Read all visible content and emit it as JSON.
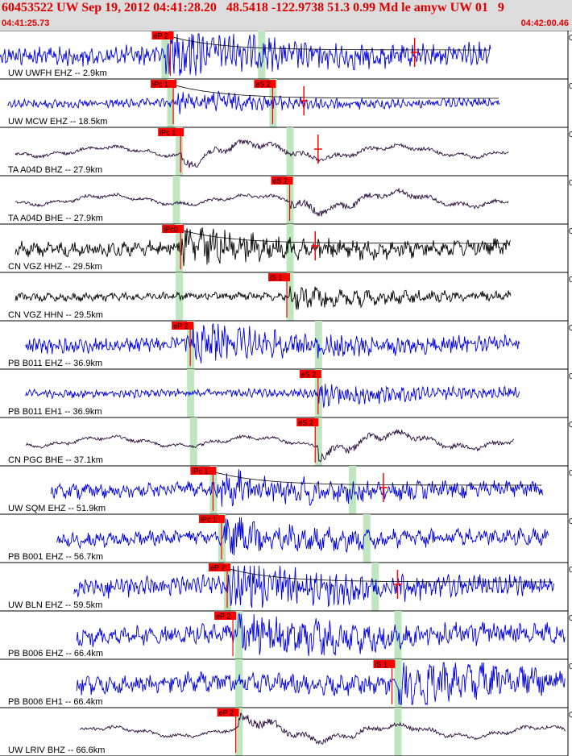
{
  "header": {
    "title": "60453522 UW Sep 19, 2012 04:41:28.20   48.5418 -122.9738 51.3 0.99 Md le amyw UW 01   9",
    "start_time": "04:41:25.73",
    "end_time": "04:42:00.46"
  },
  "colors": {
    "header_bg": "#dcdcdc",
    "header_text": "#e00000",
    "pick_box": "#ff0000",
    "window": "#bfe6bf",
    "blue": "#0000dd",
    "purple": "#2a0a3a",
    "black": "#000000"
  },
  "chart_data": {
    "type": "line",
    "x_range": [
      "04:41:25.73",
      "04:42:00.46"
    ],
    "traces": [
      {
        "label": "UW UWFH EHZ -- 2.9km",
        "color": "blue",
        "amp": "high",
        "freq": "high",
        "start": 0.0,
        "end": 0.864,
        "burst": 0.29,
        "picks": [
          {
            "text": "eP 2",
            "t": 0.3
          }
        ],
        "windows": [
          0.29,
          0.46
        ],
        "coda": true,
        "marker": 0.73,
        "zero": "0"
      },
      {
        "label": "UW MCW EHZ -- 18.5km",
        "color": "blue",
        "amp": "low",
        "freq": "high",
        "start": 0.013,
        "end": 0.88,
        "burst": 0.31,
        "picks": [
          {
            "text": "iPc 1",
            "t": 0.305
          },
          {
            "text": "eS 2",
            "t": 0.48
          }
        ],
        "windows": [
          0.3,
          0.48
        ],
        "coda": true,
        "marker": 0.535,
        "zero": "0"
      },
      {
        "label": "TA A04D BHZ -- 27.9km",
        "color": "purple",
        "amp": "med",
        "freq": "low",
        "start": 0.027,
        "end": 0.895,
        "burst": 0.32,
        "picks": [
          {
            "text": "iPc 1",
            "t": 0.318
          }
        ],
        "windows": [
          0.315,
          0.51
        ],
        "coda": false,
        "marker": 0.56,
        "zero": "0"
      },
      {
        "label": "TA A04D BHE -- 27.9km",
        "color": "purple",
        "amp": "med",
        "freq": "low",
        "start": 0.027,
        "end": 0.895,
        "burst": 0.51,
        "picks": [
          {
            "text": "eS 2",
            "t": 0.51
          }
        ],
        "windows": [
          0.31,
          0.51
        ],
        "coda": false,
        "marker": null,
        "zero": "0"
      },
      {
        "label": "CN VGZ HHZ -- 29.5km",
        "color": "black",
        "amp": "med",
        "freq": "med",
        "start": 0.027,
        "end": 0.9,
        "burst": 0.32,
        "picks": [
          {
            "text": "iPc0",
            "t": 0.318
          }
        ],
        "windows": [
          0.315,
          0.51
        ],
        "coda": true,
        "marker": 0.555,
        "zero": "0"
      },
      {
        "label": "CN VGZ HHN -- 29.5km",
        "color": "black",
        "amp": "low",
        "freq": "med",
        "start": 0.027,
        "end": 0.9,
        "burst": 0.51,
        "picks": [
          {
            "text": "iS 1",
            "t": 0.505
          }
        ],
        "windows": [
          0.315,
          0.51
        ],
        "coda": false,
        "marker": null,
        "zero": "0"
      },
      {
        "label": "PB B011 EHZ -- 36.9km",
        "color": "blue",
        "amp": "med",
        "freq": "high",
        "start": 0.045,
        "end": 0.915,
        "burst": 0.34,
        "picks": [
          {
            "text": "eP 2",
            "t": 0.335
          }
        ],
        "windows": [
          0.335,
          0.56
        ],
        "coda": false,
        "marker": null,
        "zero": "0"
      },
      {
        "label": "PB B011 EH1 -- 36.9km",
        "color": "blue",
        "amp": "low",
        "freq": "high",
        "start": 0.045,
        "end": 0.915,
        "burst": 0.56,
        "picks": [
          {
            "text": "eS 2",
            "t": 0.56
          }
        ],
        "windows": [
          0.335,
          0.56
        ],
        "coda": false,
        "marker": null,
        "zero": "0"
      },
      {
        "label": "CN PGC BHE -- 37.1km",
        "color": "purple",
        "amp": "med",
        "freq": "low",
        "start": 0.045,
        "end": 0.905,
        "burst": 0.56,
        "picks": [
          {
            "text": "eS 2",
            "t": 0.555
          }
        ],
        "windows": [
          0.34,
          0.56
        ],
        "coda": false,
        "marker": null,
        "zero": "0"
      },
      {
        "label": "UW SQM EHZ -- 51.9km",
        "color": "blue",
        "amp": "med",
        "freq": "med",
        "start": 0.09,
        "end": 0.955,
        "burst": 0.38,
        "picks": [
          {
            "text": "iPc 1",
            "t": 0.375
          }
        ],
        "windows": [
          0.375,
          0.62
        ],
        "coda": true,
        "marker": 0.675,
        "zero": "0"
      },
      {
        "label": "PB B001 EHZ -- 56.7km",
        "color": "blue",
        "amp": "med",
        "freq": "med",
        "start": 0.1,
        "end": 0.965,
        "burst": 0.395,
        "picks": [
          {
            "text": "iPc 1",
            "t": 0.39
          }
        ],
        "windows": [
          0.39,
          0.645
        ],
        "coda": false,
        "marker": null,
        "zero": "0"
      },
      {
        "label": "UW BLN EHZ -- 59.5km",
        "color": "blue",
        "amp": "high",
        "freq": "high",
        "start": 0.13,
        "end": 0.975,
        "burst": 0.4,
        "picks": [
          {
            "text": "eP 2",
            "t": 0.4
          }
        ],
        "windows": [
          0.4,
          0.66
        ],
        "coda": true,
        "marker": 0.7,
        "zero": "0"
      },
      {
        "label": "PB B006 EHZ -- 66.4km",
        "color": "blue",
        "amp": "high",
        "freq": "med",
        "start": 0.135,
        "end": 0.995,
        "burst": 0.42,
        "picks": [
          {
            "text": "eP 2",
            "t": 0.41
          }
        ],
        "windows": [
          0.42,
          0.7
        ],
        "coda": false,
        "marker": null,
        "zero": "0"
      },
      {
        "label": "PB B006 EH1 -- 66.4km",
        "color": "blue",
        "amp": "high",
        "freq": "med",
        "start": 0.135,
        "end": 0.995,
        "burst": 0.7,
        "picks": [
          {
            "text": "iS 1",
            "t": 0.69
          }
        ],
        "windows": [
          0.42,
          0.7
        ],
        "coda": false,
        "marker": null,
        "zero": "0"
      },
      {
        "label": "UW LRIV BHZ -- 66.6km",
        "color": "purple",
        "amp": "med",
        "freq": "low",
        "start": 0.14,
        "end": 0.995,
        "burst": 0.42,
        "picks": [
          {
            "text": "eP 2",
            "t": 0.415
          }
        ],
        "windows": [
          0.42,
          0.7
        ],
        "coda": false,
        "marker": null,
        "zero": "0"
      }
    ]
  }
}
